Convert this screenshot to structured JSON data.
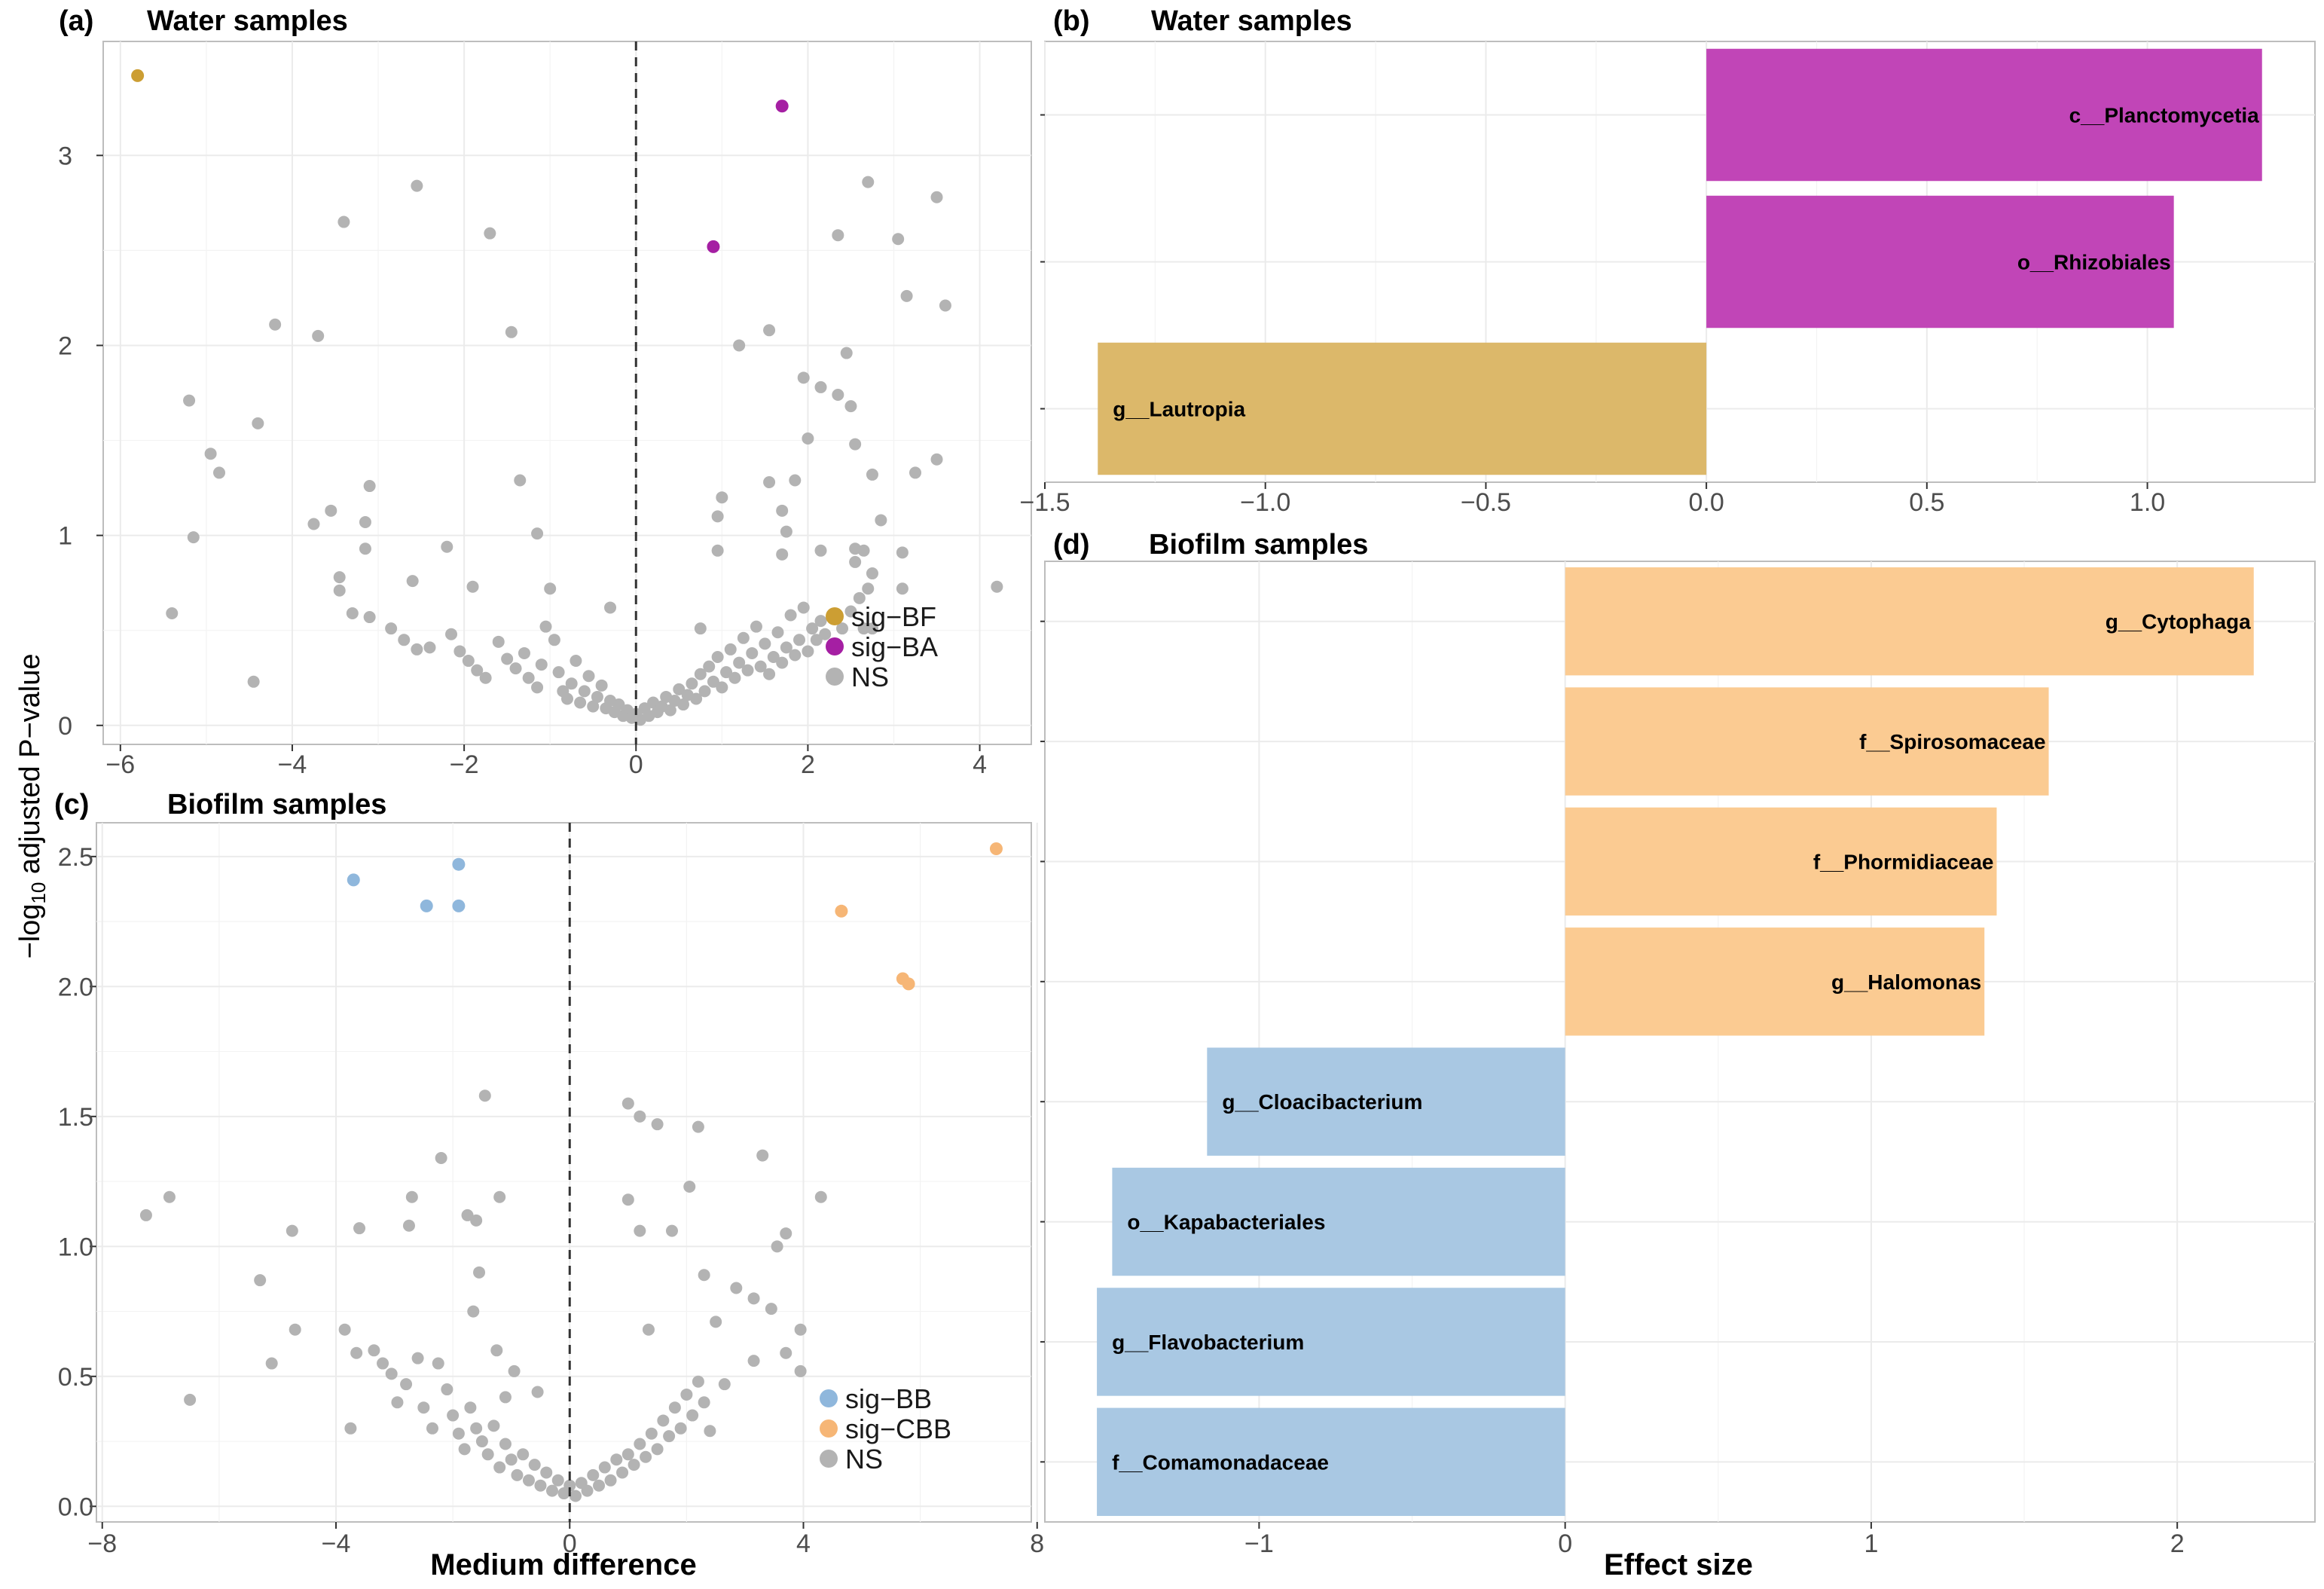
{
  "y_axis_title": {
    "prefix": "−log",
    "sub": "10",
    "suffix": " adjusted P−value"
  },
  "colors": {
    "sig_BF": "#cc9e33",
    "sig_BA": "#a51fa3",
    "sig_BB": "#8fb7dc",
    "sig_CBB": "#f6b676",
    "NS": "#b3b3b3",
    "bar_BA": "#c145b7",
    "bar_BF": "#dcb86a",
    "bar_CBB": "#fbcb92",
    "bar_BB": "#a9c8e3"
  },
  "chart_data": [
    {
      "id": "a",
      "tag": "(a)",
      "type": "scatter",
      "title": "Water samples",
      "xlabel": "",
      "ylabel": "-log10 adjusted P-value",
      "xlim": [
        -6.2,
        4.6
      ],
      "ylim": [
        -0.1,
        3.6
      ],
      "xticks": [
        -6,
        -4,
        -2,
        0,
        2,
        4
      ],
      "xtick_labels": [
        "−6",
        "−4",
        "−2",
        "0",
        "2",
        "4"
      ],
      "yticks": [
        0,
        1,
        2,
        3
      ],
      "ytick_labels": [
        "0",
        "1",
        "2",
        "3"
      ],
      "vline": 0,
      "legend": [
        {
          "label": "sig−BF",
          "group": "sig_BF"
        },
        {
          "label": "sig−BA",
          "group": "sig_BA"
        },
        {
          "label": "NS",
          "group": "NS"
        }
      ],
      "significant": [
        {
          "x": -5.8,
          "y": 3.42,
          "group": "sig_BF"
        },
        {
          "x": 1.7,
          "y": 3.26,
          "group": "sig_BA"
        },
        {
          "x": 0.9,
          "y": 2.52,
          "group": "sig_BA"
        }
      ],
      "ns_points": [
        [
          -2.55,
          2.84
        ],
        [
          -3.4,
          2.65
        ],
        [
          -1.7,
          2.59
        ],
        [
          -4.2,
          2.11
        ],
        [
          -3.7,
          2.05
        ],
        [
          -1.45,
          2.07
        ],
        [
          -5.2,
          1.71
        ],
        [
          -4.4,
          1.59
        ],
        [
          -4.95,
          1.43
        ],
        [
          -4.85,
          1.33
        ],
        [
          -3.1,
          1.26
        ],
        [
          -1.35,
          1.29
        ],
        [
          -3.55,
          1.13
        ],
        [
          -3.75,
          1.06
        ],
        [
          -3.15,
          1.07
        ],
        [
          -5.15,
          0.99
        ],
        [
          -1.15,
          1.01
        ],
        [
          -3.15,
          0.93
        ],
        [
          -2.2,
          0.94
        ],
        [
          -3.45,
          0.78
        ],
        [
          -3.45,
          0.71
        ],
        [
          -2.6,
          0.76
        ],
        [
          -1.9,
          0.73
        ],
        [
          -1.0,
          0.72
        ],
        [
          -5.4,
          0.59
        ],
        [
          -4.45,
          0.23
        ],
        [
          -3.3,
          0.59
        ],
        [
          -3.1,
          0.57
        ],
        [
          -2.85,
          0.51
        ],
        [
          -2.7,
          0.45
        ],
        [
          -2.55,
          0.4
        ],
        [
          -2.4,
          0.41
        ],
        [
          -2.15,
          0.48
        ],
        [
          -2.05,
          0.39
        ],
        [
          -1.95,
          0.34
        ],
        [
          -1.85,
          0.29
        ],
        [
          -1.75,
          0.25
        ],
        [
          -1.6,
          0.44
        ],
        [
          -1.5,
          0.35
        ],
        [
          -1.4,
          0.3
        ],
        [
          -1.3,
          0.38
        ],
        [
          -1.25,
          0.25
        ],
        [
          -1.15,
          0.2
        ],
        [
          -1.1,
          0.32
        ],
        [
          -1.05,
          0.52
        ],
        [
          -0.95,
          0.45
        ],
        [
          -0.9,
          0.28
        ],
        [
          -0.85,
          0.18
        ],
        [
          -0.8,
          0.14
        ],
        [
          -0.75,
          0.22
        ],
        [
          -0.7,
          0.34
        ],
        [
          -0.65,
          0.12
        ],
        [
          -0.6,
          0.18
        ],
        [
          -0.55,
          0.26
        ],
        [
          -0.5,
          0.1
        ],
        [
          -0.45,
          0.15
        ],
        [
          -0.4,
          0.21
        ],
        [
          -0.35,
          0.09
        ],
        [
          -0.3,
          0.13
        ],
        [
          -0.25,
          0.07
        ],
        [
          -0.2,
          0.11
        ],
        [
          -0.15,
          0.05
        ],
        [
          -0.1,
          0.08
        ],
        [
          -0.05,
          0.04
        ],
        [
          0.0,
          0.06
        ],
        [
          0.05,
          0.03
        ],
        [
          0.1,
          0.09
        ],
        [
          0.15,
          0.05
        ],
        [
          0.2,
          0.12
        ],
        [
          0.25,
          0.07
        ],
        [
          0.3,
          0.1
        ],
        [
          0.35,
          0.15
        ],
        [
          0.4,
          0.08
        ],
        [
          0.45,
          0.13
        ],
        [
          0.5,
          0.19
        ],
        [
          0.55,
          0.11
        ],
        [
          0.6,
          0.16
        ],
        [
          0.65,
          0.22
        ],
        [
          0.7,
          0.14
        ],
        [
          0.75,
          0.27
        ],
        [
          0.8,
          0.18
        ],
        [
          0.85,
          0.31
        ],
        [
          0.9,
          0.23
        ],
        [
          0.95,
          0.36
        ],
        [
          1.0,
          0.2
        ],
        [
          1.05,
          0.28
        ],
        [
          1.1,
          0.4
        ],
        [
          1.15,
          0.25
        ],
        [
          1.2,
          0.33
        ],
        [
          1.25,
          0.46
        ],
        [
          1.3,
          0.29
        ],
        [
          1.35,
          0.38
        ],
        [
          1.4,
          0.52
        ],
        [
          1.45,
          0.31
        ],
        [
          1.5,
          0.43
        ],
        [
          1.55,
          0.27
        ],
        [
          1.6,
          0.36
        ],
        [
          1.65,
          0.49
        ],
        [
          1.7,
          0.33
        ],
        [
          1.75,
          0.41
        ],
        [
          1.8,
          0.58
        ],
        [
          1.85,
          0.37
        ],
        [
          1.9,
          0.45
        ],
        [
          1.95,
          0.62
        ],
        [
          2.0,
          0.39
        ],
        [
          2.05,
          0.51
        ],
        [
          2.1,
          0.45
        ],
        [
          2.15,
          0.55
        ],
        [
          2.2,
          0.48
        ],
        [
          2.3,
          0.58
        ],
        [
          2.4,
          0.51
        ],
        [
          2.5,
          0.6
        ],
        [
          2.6,
          0.67
        ],
        [
          2.7,
          0.72
        ],
        [
          0.75,
          0.51
        ],
        [
          -0.3,
          0.62
        ],
        [
          1.0,
          1.2
        ],
        [
          1.55,
          1.28
        ],
        [
          1.85,
          1.29
        ],
        [
          0.95,
          1.1
        ],
        [
          1.7,
          1.13
        ],
        [
          1.75,
          1.02
        ],
        [
          0.95,
          0.92
        ],
        [
          1.7,
          0.9
        ],
        [
          2.15,
          0.92
        ],
        [
          1.2,
          2.0
        ],
        [
          1.55,
          2.08
        ],
        [
          1.95,
          1.83
        ],
        [
          2.15,
          1.78
        ],
        [
          2.35,
          1.74
        ],
        [
          2.0,
          1.51
        ],
        [
          2.5,
          1.68
        ],
        [
          2.55,
          1.48
        ],
        [
          2.45,
          1.96
        ],
        [
          2.35,
          2.58
        ],
        [
          2.7,
          2.86
        ],
        [
          3.05,
          2.56
        ],
        [
          3.15,
          2.26
        ],
        [
          3.5,
          2.78
        ],
        [
          3.6,
          2.21
        ],
        [
          3.5,
          1.4
        ],
        [
          2.75,
          1.32
        ],
        [
          3.25,
          1.33
        ],
        [
          2.85,
          1.08
        ],
        [
          2.55,
          0.93
        ],
        [
          2.65,
          0.92
        ],
        [
          2.55,
          0.86
        ],
        [
          2.75,
          0.8
        ],
        [
          3.1,
          0.91
        ],
        [
          3.1,
          0.72
        ],
        [
          4.2,
          0.73
        ],
        [
          2.65,
          0.51
        ],
        [
          2.75,
          0.51
        ]
      ]
    },
    {
      "id": "c",
      "tag": "(c)",
      "type": "scatter",
      "title": "Biofilm samples",
      "xlabel": "Medium difference",
      "ylabel": "-log10 adjusted P-value",
      "xlim": [
        -8.1,
        7.9
      ],
      "ylim": [
        -0.06,
        2.63
      ],
      "xticks": [
        -8,
        -4,
        0,
        4,
        8
      ],
      "xtick_labels": [
        "−8",
        "−4",
        "0",
        "4",
        "8"
      ],
      "yticks": [
        0,
        0.5,
        1.0,
        1.5,
        2.0,
        2.5
      ],
      "ytick_labels": [
        "0.0",
        "0.5",
        "1.0",
        "1.5",
        "2.0",
        "2.5"
      ],
      "vline": 0,
      "legend": [
        {
          "label": "sig−BB",
          "group": "sig_BB"
        },
        {
          "label": "sig−CBB",
          "group": "sig_CBB"
        },
        {
          "label": "NS",
          "group": "NS"
        }
      ],
      "significant": [
        {
          "x": -3.7,
          "y": 2.41,
          "group": "sig_BB"
        },
        {
          "x": -1.9,
          "y": 2.47,
          "group": "sig_BB"
        },
        {
          "x": -2.45,
          "y": 2.31,
          "group": "sig_BB"
        },
        {
          "x": -1.9,
          "y": 2.31,
          "group": "sig_BB"
        },
        {
          "x": 7.3,
          "y": 2.53,
          "group": "sig_CBB"
        },
        {
          "x": 4.65,
          "y": 2.29,
          "group": "sig_CBB"
        },
        {
          "x": 5.7,
          "y": 2.03,
          "group": "sig_CBB"
        },
        {
          "x": 5.8,
          "y": 2.01,
          "group": "sig_CBB"
        }
      ],
      "ns_points": [
        [
          -7.25,
          1.12
        ],
        [
          -6.85,
          1.19
        ],
        [
          -6.5,
          0.41
        ],
        [
          -5.3,
          0.87
        ],
        [
          -5.1,
          0.55
        ],
        [
          -4.75,
          1.06
        ],
        [
          -4.7,
          0.68
        ],
        [
          -3.85,
          0.68
        ],
        [
          -3.75,
          0.3
        ],
        [
          -3.65,
          0.59
        ],
        [
          -3.6,
          1.07
        ],
        [
          -3.35,
          0.6
        ],
        [
          -3.2,
          0.55
        ],
        [
          -3.05,
          0.51
        ],
        [
          -2.95,
          0.4
        ],
        [
          -2.8,
          0.47
        ],
        [
          -2.6,
          0.57
        ],
        [
          -2.5,
          0.38
        ],
        [
          -2.35,
          0.3
        ],
        [
          -2.25,
          0.55
        ],
        [
          -2.1,
          0.45
        ],
        [
          -2.0,
          0.35
        ],
        [
          -1.9,
          0.28
        ],
        [
          -1.8,
          0.22
        ],
        [
          -1.7,
          0.38
        ],
        [
          -1.6,
          0.3
        ],
        [
          -1.5,
          0.25
        ],
        [
          -1.4,
          0.2
        ],
        [
          -1.3,
          0.31
        ],
        [
          -1.2,
          0.15
        ],
        [
          -1.1,
          0.24
        ],
        [
          -1.0,
          0.18
        ],
        [
          -0.9,
          0.12
        ],
        [
          -0.8,
          0.2
        ],
        [
          -0.7,
          0.1
        ],
        [
          -0.6,
          0.16
        ],
        [
          -0.5,
          0.08
        ],
        [
          -0.4,
          0.13
        ],
        [
          -0.3,
          0.06
        ],
        [
          -0.2,
          0.1
        ],
        [
          -0.1,
          0.05
        ],
        [
          0.0,
          0.08
        ],
        [
          0.1,
          0.04
        ],
        [
          0.2,
          0.09
        ],
        [
          0.3,
          0.06
        ],
        [
          0.4,
          0.12
        ],
        [
          0.5,
          0.08
        ],
        [
          0.6,
          0.15
        ],
        [
          0.7,
          0.1
        ],
        [
          0.8,
          0.18
        ],
        [
          0.9,
          0.13
        ],
        [
          1.0,
          0.2
        ],
        [
          1.1,
          0.16
        ],
        [
          1.2,
          0.24
        ],
        [
          1.3,
          0.19
        ],
        [
          1.4,
          0.28
        ],
        [
          1.5,
          0.22
        ],
        [
          1.6,
          0.33
        ],
        [
          1.7,
          0.27
        ],
        [
          1.8,
          0.38
        ],
        [
          1.9,
          0.3
        ],
        [
          2.0,
          0.43
        ],
        [
          2.1,
          0.35
        ],
        [
          2.2,
          0.48
        ],
        [
          2.3,
          0.4
        ],
        [
          2.4,
          0.29
        ],
        [
          -2.2,
          1.34
        ],
        [
          -2.7,
          1.19
        ],
        [
          -2.75,
          1.08
        ],
        [
          -1.45,
          1.58
        ],
        [
          -1.75,
          1.12
        ],
        [
          -1.6,
          1.1
        ],
        [
          -1.2,
          1.19
        ],
        [
          -1.55,
          0.9
        ],
        [
          -1.65,
          0.75
        ],
        [
          -1.25,
          0.6
        ],
        [
          -0.95,
          0.52
        ],
        [
          -0.55,
          0.44
        ],
        [
          -1.1,
          0.42
        ],
        [
          1.0,
          1.55
        ],
        [
          1.2,
          1.5
        ],
        [
          1.5,
          1.47
        ],
        [
          2.2,
          1.46
        ],
        [
          3.3,
          1.35
        ],
        [
          2.05,
          1.23
        ],
        [
          4.3,
          1.19
        ],
        [
          1.0,
          1.18
        ],
        [
          1.2,
          1.06
        ],
        [
          1.75,
          1.06
        ],
        [
          3.7,
          1.05
        ],
        [
          3.55,
          1.0
        ],
        [
          2.3,
          0.89
        ],
        [
          2.85,
          0.84
        ],
        [
          3.15,
          0.8
        ],
        [
          3.45,
          0.76
        ],
        [
          2.5,
          0.71
        ],
        [
          1.35,
          0.68
        ],
        [
          3.95,
          0.68
        ],
        [
          3.7,
          0.59
        ],
        [
          3.15,
          0.56
        ],
        [
          3.95,
          0.52
        ],
        [
          2.65,
          0.47
        ]
      ]
    },
    {
      "id": "b",
      "tag": "(b)",
      "type": "bar",
      "orientation": "horizontal",
      "title": "Water samples",
      "xlabel": "",
      "xlim": [
        -1.5,
        1.38
      ],
      "xticks": [
        -1.5,
        -1.0,
        -0.5,
        0.0,
        0.5,
        1.0
      ],
      "xtick_labels": [
        "−1.5",
        "−1.0",
        "−0.5",
        "0.0",
        "0.5",
        "1.0"
      ],
      "categories": [
        "c__Planctomycetia",
        "o__Rhizobiales",
        "g__Lautropia"
      ],
      "values": [
        1.26,
        1.06,
        -1.38
      ],
      "groups": [
        "bar_BA",
        "bar_BA",
        "bar_BF"
      ]
    },
    {
      "id": "d",
      "tag": "(d)",
      "type": "bar",
      "orientation": "horizontal",
      "title": "Biofilm samples",
      "xlabel": "Effect size",
      "xlim": [
        -1.7,
        2.45
      ],
      "xticks": [
        -1,
        0,
        1,
        2
      ],
      "xtick_labels": [
        "−1",
        "0",
        "1",
        "2"
      ],
      "categories": [
        "g__Cytophaga",
        "f__Spirosomaceae",
        "f__Phormidiaceae",
        "g__Halomonas",
        "g__Cloacibacterium",
        "o__Kapabacteriales",
        "g__Flavobacterium",
        "f__Comamonadaceae"
      ],
      "values": [
        2.25,
        1.58,
        1.41,
        1.37,
        -1.17,
        -1.48,
        -1.53,
        -1.53
      ],
      "groups": [
        "bar_CBB",
        "bar_CBB",
        "bar_CBB",
        "bar_CBB",
        "bar_BB",
        "bar_BB",
        "bar_BB",
        "bar_BB"
      ]
    }
  ]
}
